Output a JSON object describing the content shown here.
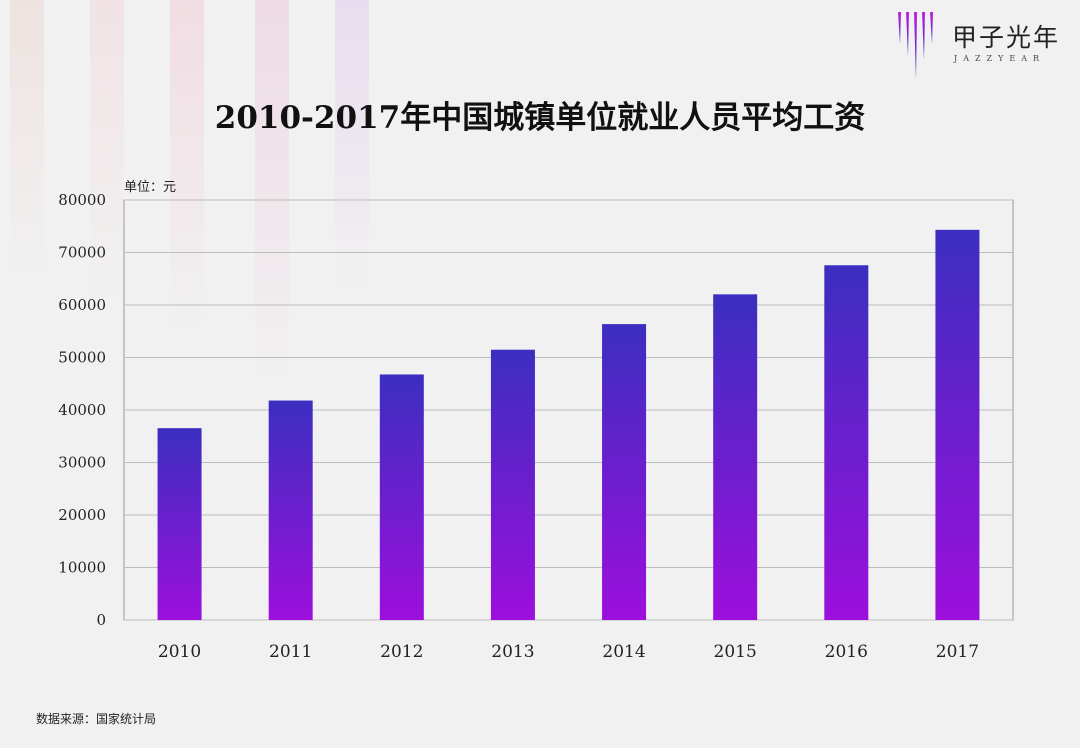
{
  "logo": {
    "name_cn": "甲子光年",
    "name_en": "JAZZYEAR"
  },
  "footer": {
    "source": "数据来源：国家统计局"
  },
  "chart_data": {
    "type": "bar",
    "title": "2010-2017年中国城镇单位就业人员平均工资",
    "unit_label": "单位：元",
    "categories": [
      "2010",
      "2011",
      "2012",
      "2013",
      "2014",
      "2015",
      "2016",
      "2017"
    ],
    "values": [
      36539,
      41799,
      46769,
      51483,
      56360,
      62029,
      67569,
      74318
    ],
    "ylim": [
      0,
      80000
    ],
    "yticks": [
      "0",
      "10000",
      "20000",
      "30000",
      "40000",
      "50000",
      "60000",
      "70000",
      "80000"
    ],
    "grid": true,
    "colors": {
      "bar_top": "#3b2ec0",
      "bar_bottom": "#9c0fdc",
      "grid": "#bdbdbd"
    }
  }
}
